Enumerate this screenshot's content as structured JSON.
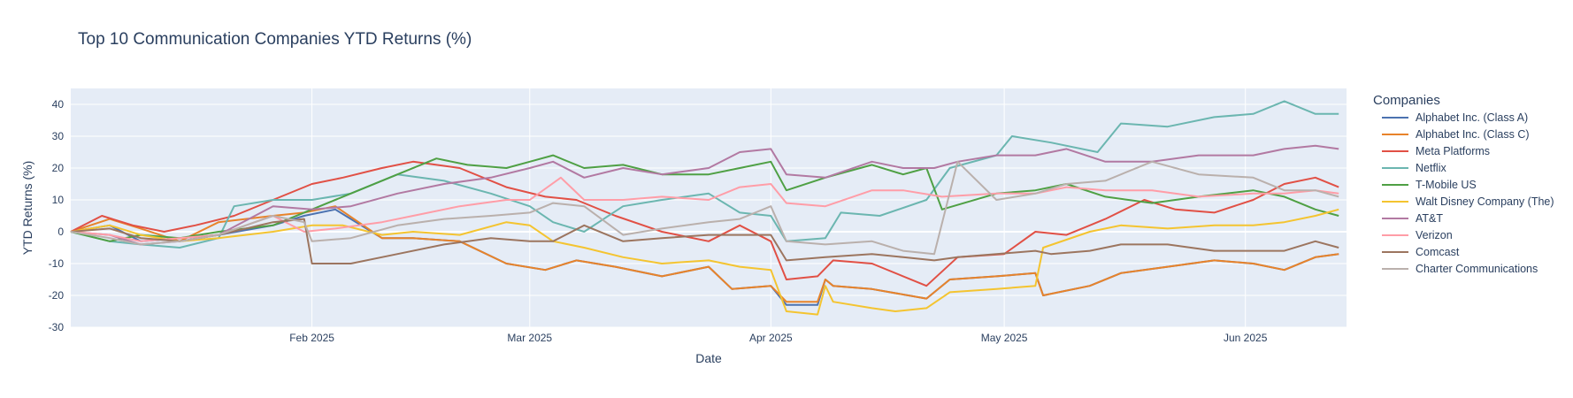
{
  "chart_data": {
    "type": "line",
    "title": "Top 10 Communication Companies YTD Returns (%)",
    "xlabel": "Date",
    "ylabel": "YTD Returns (%)",
    "x_range": [
      "2025-01-01",
      "2025-06-14"
    ],
    "ylim": [
      -30,
      45
    ],
    "x_ticks": [
      {
        "date": "2025-02-01",
        "label": "Feb 2025"
      },
      {
        "date": "2025-03-01",
        "label": "Mar 2025"
      },
      {
        "date": "2025-04-01",
        "label": "Apr 2025"
      },
      {
        "date": "2025-05-01",
        "label": "May 2025"
      },
      {
        "date": "2025-06-01",
        "label": "Jun 2025"
      }
    ],
    "y_ticks": [
      40,
      30,
      20,
      10,
      0,
      -10,
      -20,
      -30
    ],
    "grid": true,
    "legend_title": "Companies",
    "legend_position": "right",
    "series": [
      {
        "name": "Alphabet Inc. (Class A)",
        "color": "#4c72b0",
        "x": [
          "2025-01-01",
          "2025-01-06",
          "2025-01-10",
          "2025-01-15",
          "2025-01-20",
          "2025-01-27",
          "2025-01-31",
          "2025-02-04",
          "2025-02-10",
          "2025-02-14",
          "2025-02-20",
          "2025-02-26",
          "2025-03-03",
          "2025-03-07",
          "2025-03-12",
          "2025-03-18",
          "2025-03-24",
          "2025-03-27",
          "2025-04-01",
          "2025-04-03",
          "2025-04-07",
          "2025-04-08",
          "2025-04-09",
          "2025-04-14",
          "2025-04-21",
          "2025-04-24",
          "2025-04-30",
          "2025-05-05",
          "2025-05-06",
          "2025-05-12",
          "2025-05-16",
          "2025-05-22",
          "2025-05-28",
          "2025-06-02",
          "2025-06-06",
          "2025-06-10",
          "2025-06-13"
        ],
        "y": [
          0,
          2,
          -3,
          -2,
          -1,
          2,
          5,
          7,
          -2,
          -2,
          -3,
          -10,
          -12,
          -9,
          -11,
          -14,
          -11,
          -18,
          -17,
          -23,
          -23,
          -15,
          -17,
          -18,
          -21,
          -15,
          -14,
          -13,
          -20,
          -17,
          -13,
          -11,
          -9,
          -10,
          -12,
          -8,
          -7
        ]
      },
      {
        "name": "Alphabet Inc. (Class C)",
        "color": "#e8832a",
        "x": [
          "2025-01-01",
          "2025-01-06",
          "2025-01-10",
          "2025-01-15",
          "2025-01-20",
          "2025-01-27",
          "2025-01-31",
          "2025-02-04",
          "2025-02-10",
          "2025-02-14",
          "2025-02-20",
          "2025-02-26",
          "2025-03-03",
          "2025-03-07",
          "2025-03-12",
          "2025-03-18",
          "2025-03-24",
          "2025-03-27",
          "2025-04-01",
          "2025-04-03",
          "2025-04-07",
          "2025-04-08",
          "2025-04-09",
          "2025-04-14",
          "2025-04-21",
          "2025-04-24",
          "2025-04-30",
          "2025-05-05",
          "2025-05-06",
          "2025-05-12",
          "2025-05-16",
          "2025-05-22",
          "2025-05-28",
          "2025-06-02",
          "2025-06-06",
          "2025-06-10",
          "2025-06-13"
        ],
        "y": [
          0,
          4,
          1,
          -3,
          3,
          5,
          6,
          8,
          -2,
          -2,
          -3,
          -10,
          -12,
          -9,
          -11,
          -14,
          -11,
          -18,
          -17,
          -22,
          -22,
          -15,
          -17,
          -18,
          -21,
          -15,
          -14,
          -13,
          -20,
          -17,
          -13,
          -11,
          -9,
          -10,
          -12,
          -8,
          -7
        ]
      },
      {
        "name": "Meta Platforms",
        "color": "#e15045",
        "x": [
          "2025-01-01",
          "2025-01-05",
          "2025-01-09",
          "2025-01-13",
          "2025-01-17",
          "2025-01-22",
          "2025-01-27",
          "2025-02-01",
          "2025-02-05",
          "2025-02-10",
          "2025-02-14",
          "2025-02-20",
          "2025-02-26",
          "2025-03-03",
          "2025-03-07",
          "2025-03-12",
          "2025-03-18",
          "2025-03-24",
          "2025-03-28",
          "2025-04-01",
          "2025-04-03",
          "2025-04-07",
          "2025-04-09",
          "2025-04-14",
          "2025-04-21",
          "2025-04-25",
          "2025-05-01",
          "2025-05-05",
          "2025-05-09",
          "2025-05-14",
          "2025-05-19",
          "2025-05-23",
          "2025-05-28",
          "2025-06-02",
          "2025-06-06",
          "2025-06-10",
          "2025-06-13"
        ],
        "y": [
          0,
          5,
          2,
          0,
          2,
          5,
          10,
          15,
          17,
          20,
          22,
          20,
          14,
          11,
          10,
          5,
          0,
          -3,
          2,
          -3,
          -15,
          -14,
          -9,
          -10,
          -17,
          -8,
          -7,
          0,
          -1,
          4,
          10,
          7,
          6,
          10,
          15,
          17,
          14
        ]
      },
      {
        "name": "Netflix",
        "color": "#6bb6b0",
        "x": [
          "2025-01-01",
          "2025-01-06",
          "2025-01-10",
          "2025-01-15",
          "2025-01-20",
          "2025-01-22",
          "2025-01-27",
          "2025-02-01",
          "2025-02-06",
          "2025-02-12",
          "2025-02-18",
          "2025-02-24",
          "2025-03-01",
          "2025-03-04",
          "2025-03-08",
          "2025-03-13",
          "2025-03-18",
          "2025-03-24",
          "2025-03-28",
          "2025-04-01",
          "2025-04-03",
          "2025-04-08",
          "2025-04-10",
          "2025-04-15",
          "2025-04-21",
          "2025-04-24",
          "2025-04-30",
          "2025-05-02",
          "2025-05-07",
          "2025-05-13",
          "2025-05-16",
          "2025-05-22",
          "2025-05-28",
          "2025-06-02",
          "2025-06-06",
          "2025-06-10",
          "2025-06-13"
        ],
        "y": [
          0,
          -3,
          -4,
          -5,
          -2,
          8,
          10,
          10,
          12,
          18,
          16,
          12,
          8,
          3,
          0,
          8,
          10,
          12,
          6,
          5,
          -3,
          -2,
          6,
          5,
          10,
          20,
          24,
          30,
          28,
          25,
          34,
          33,
          36,
          37,
          41,
          37,
          37
        ]
      },
      {
        "name": "T-Mobile US",
        "color": "#4fa044",
        "x": [
          "2025-01-01",
          "2025-01-06",
          "2025-01-10",
          "2025-01-15",
          "2025-01-20",
          "2025-01-27",
          "2025-02-01",
          "2025-02-06",
          "2025-02-12",
          "2025-02-17",
          "2025-02-21",
          "2025-02-26",
          "2025-03-01",
          "2025-03-04",
          "2025-03-08",
          "2025-03-13",
          "2025-03-18",
          "2025-03-24",
          "2025-03-28",
          "2025-04-01",
          "2025-04-03",
          "2025-04-08",
          "2025-04-14",
          "2025-04-18",
          "2025-04-21",
          "2025-04-23",
          "2025-04-30",
          "2025-05-05",
          "2025-05-09",
          "2025-05-14",
          "2025-05-20",
          "2025-05-26",
          "2025-06-02",
          "2025-06-06",
          "2025-06-10",
          "2025-06-13"
        ],
        "y": [
          0,
          -3,
          -1,
          -2,
          0,
          2,
          7,
          12,
          18,
          23,
          21,
          20,
          22,
          24,
          20,
          21,
          18,
          18,
          20,
          22,
          13,
          17,
          21,
          18,
          20,
          7,
          12,
          13,
          15,
          11,
          9,
          11,
          13,
          11,
          7,
          5
        ]
      },
      {
        "name": "Walt Disney Company (The)",
        "color": "#f4c430",
        "x": [
          "2025-01-01",
          "2025-01-06",
          "2025-01-10",
          "2025-01-15",
          "2025-01-20",
          "2025-01-27",
          "2025-02-01",
          "2025-02-05",
          "2025-02-10",
          "2025-02-14",
          "2025-02-20",
          "2025-02-26",
          "2025-03-01",
          "2025-03-04",
          "2025-03-08",
          "2025-03-13",
          "2025-03-18",
          "2025-03-24",
          "2025-03-28",
          "2025-04-01",
          "2025-04-03",
          "2025-04-07",
          "2025-04-08",
          "2025-04-09",
          "2025-04-14",
          "2025-04-17",
          "2025-04-21",
          "2025-04-24",
          "2025-04-30",
          "2025-05-05",
          "2025-05-06",
          "2025-05-12",
          "2025-05-16",
          "2025-05-22",
          "2025-05-28",
          "2025-06-02",
          "2025-06-06",
          "2025-06-10",
          "2025-06-13"
        ],
        "y": [
          0,
          2,
          -1,
          -3,
          -2,
          0,
          2,
          2,
          -1,
          0,
          -1,
          3,
          2,
          -3,
          -5,
          -8,
          -10,
          -9,
          -11,
          -12,
          -25,
          -26,
          -17,
          -22,
          -24,
          -25,
          -24,
          -19,
          -18,
          -17,
          -5,
          0,
          2,
          1,
          2,
          2,
          3,
          5,
          7
        ]
      },
      {
        "name": "AT&T",
        "color": "#b279a2",
        "x": [
          "2025-01-01",
          "2025-01-06",
          "2025-01-10",
          "2025-01-15",
          "2025-01-20",
          "2025-01-27",
          "2025-02-01",
          "2025-02-06",
          "2025-02-12",
          "2025-02-18",
          "2025-02-24",
          "2025-03-01",
          "2025-03-04",
          "2025-03-08",
          "2025-03-13",
          "2025-03-18",
          "2025-03-24",
          "2025-03-28",
          "2025-04-01",
          "2025-04-03",
          "2025-04-08",
          "2025-04-14",
          "2025-04-18",
          "2025-04-22",
          "2025-04-25",
          "2025-04-30",
          "2025-05-05",
          "2025-05-09",
          "2025-05-14",
          "2025-05-20",
          "2025-05-26",
          "2025-06-02",
          "2025-06-06",
          "2025-06-10",
          "2025-06-13"
        ],
        "y": [
          0,
          -1,
          -4,
          -3,
          -1,
          8,
          7,
          8,
          12,
          15,
          17,
          20,
          22,
          17,
          20,
          18,
          20,
          25,
          26,
          18,
          17,
          22,
          20,
          20,
          22,
          24,
          24,
          26,
          22,
          22,
          24,
          24,
          26,
          27,
          26
        ]
      },
      {
        "name": "Verizon",
        "color": "#ff9da7",
        "x": [
          "2025-01-01",
          "2025-01-06",
          "2025-01-10",
          "2025-01-15",
          "2025-01-20",
          "2025-01-27",
          "2025-01-31",
          "2025-02-04",
          "2025-02-10",
          "2025-02-14",
          "2025-02-20",
          "2025-02-26",
          "2025-03-01",
          "2025-03-05",
          "2025-03-08",
          "2025-03-13",
          "2025-03-18",
          "2025-03-24",
          "2025-03-28",
          "2025-04-01",
          "2025-04-03",
          "2025-04-08",
          "2025-04-14",
          "2025-04-18",
          "2025-04-23",
          "2025-04-30",
          "2025-05-05",
          "2025-05-09",
          "2025-05-14",
          "2025-05-20",
          "2025-05-26",
          "2025-06-02",
          "2025-06-06",
          "2025-06-10",
          "2025-06-13"
        ],
        "y": [
          0,
          -1,
          -3,
          -2,
          -1,
          5,
          0,
          1,
          3,
          5,
          8,
          10,
          10,
          17,
          10,
          10,
          11,
          10,
          14,
          15,
          9,
          8,
          13,
          13,
          11,
          12,
          12,
          14,
          13,
          13,
          11,
          12,
          12,
          13,
          12
        ]
      },
      {
        "name": "Comcast",
        "color": "#9c755f",
        "x": [
          "2025-01-01",
          "2025-01-06",
          "2025-01-10",
          "2025-01-15",
          "2025-01-20",
          "2025-01-27",
          "2025-01-31",
          "2025-02-01",
          "2025-02-06",
          "2025-02-12",
          "2025-02-18",
          "2025-02-24",
          "2025-03-01",
          "2025-03-04",
          "2025-03-08",
          "2025-03-13",
          "2025-03-18",
          "2025-03-24",
          "2025-03-28",
          "2025-04-01",
          "2025-04-03",
          "2025-04-08",
          "2025-04-14",
          "2025-04-18",
          "2025-04-22",
          "2025-04-25",
          "2025-04-30",
          "2025-05-05",
          "2025-05-07",
          "2025-05-12",
          "2025-05-16",
          "2025-05-22",
          "2025-05-28",
          "2025-06-02",
          "2025-06-06",
          "2025-06-10",
          "2025-06-13"
        ],
        "y": [
          0,
          1,
          -2,
          -3,
          -1,
          3,
          4,
          -10,
          -10,
          -7,
          -4,
          -2,
          -3,
          -3,
          2,
          -3,
          -2,
          -1,
          -1,
          -1,
          -9,
          -8,
          -7,
          -8,
          -9,
          -8,
          -7,
          -6,
          -7,
          -6,
          -4,
          -4,
          -6,
          -6,
          -6,
          -3,
          -5
        ]
      },
      {
        "name": "Charter Communications",
        "color": "#bab0ac",
        "x": [
          "2025-01-01",
          "2025-01-06",
          "2025-01-10",
          "2025-01-15",
          "2025-01-20",
          "2025-01-27",
          "2025-01-31",
          "2025-02-01",
          "2025-02-06",
          "2025-02-12",
          "2025-02-18",
          "2025-02-24",
          "2025-03-01",
          "2025-03-04",
          "2025-03-08",
          "2025-03-13",
          "2025-03-18",
          "2025-03-24",
          "2025-03-28",
          "2025-04-01",
          "2025-04-03",
          "2025-04-08",
          "2025-04-14",
          "2025-04-18",
          "2025-04-22",
          "2025-04-25",
          "2025-04-30",
          "2025-05-05",
          "2025-05-09",
          "2025-05-14",
          "2025-05-20",
          "2025-05-26",
          "2025-06-02",
          "2025-06-06",
          "2025-06-10",
          "2025-06-13"
        ],
        "y": [
          0,
          -2,
          -4,
          -3,
          -1,
          5,
          3,
          -3,
          -2,
          2,
          4,
          5,
          6,
          9,
          8,
          -1,
          1,
          3,
          4,
          8,
          -3,
          -4,
          -3,
          -6,
          -7,
          22,
          10,
          12,
          15,
          16,
          22,
          18,
          17,
          13,
          13,
          11
        ]
      }
    ]
  }
}
